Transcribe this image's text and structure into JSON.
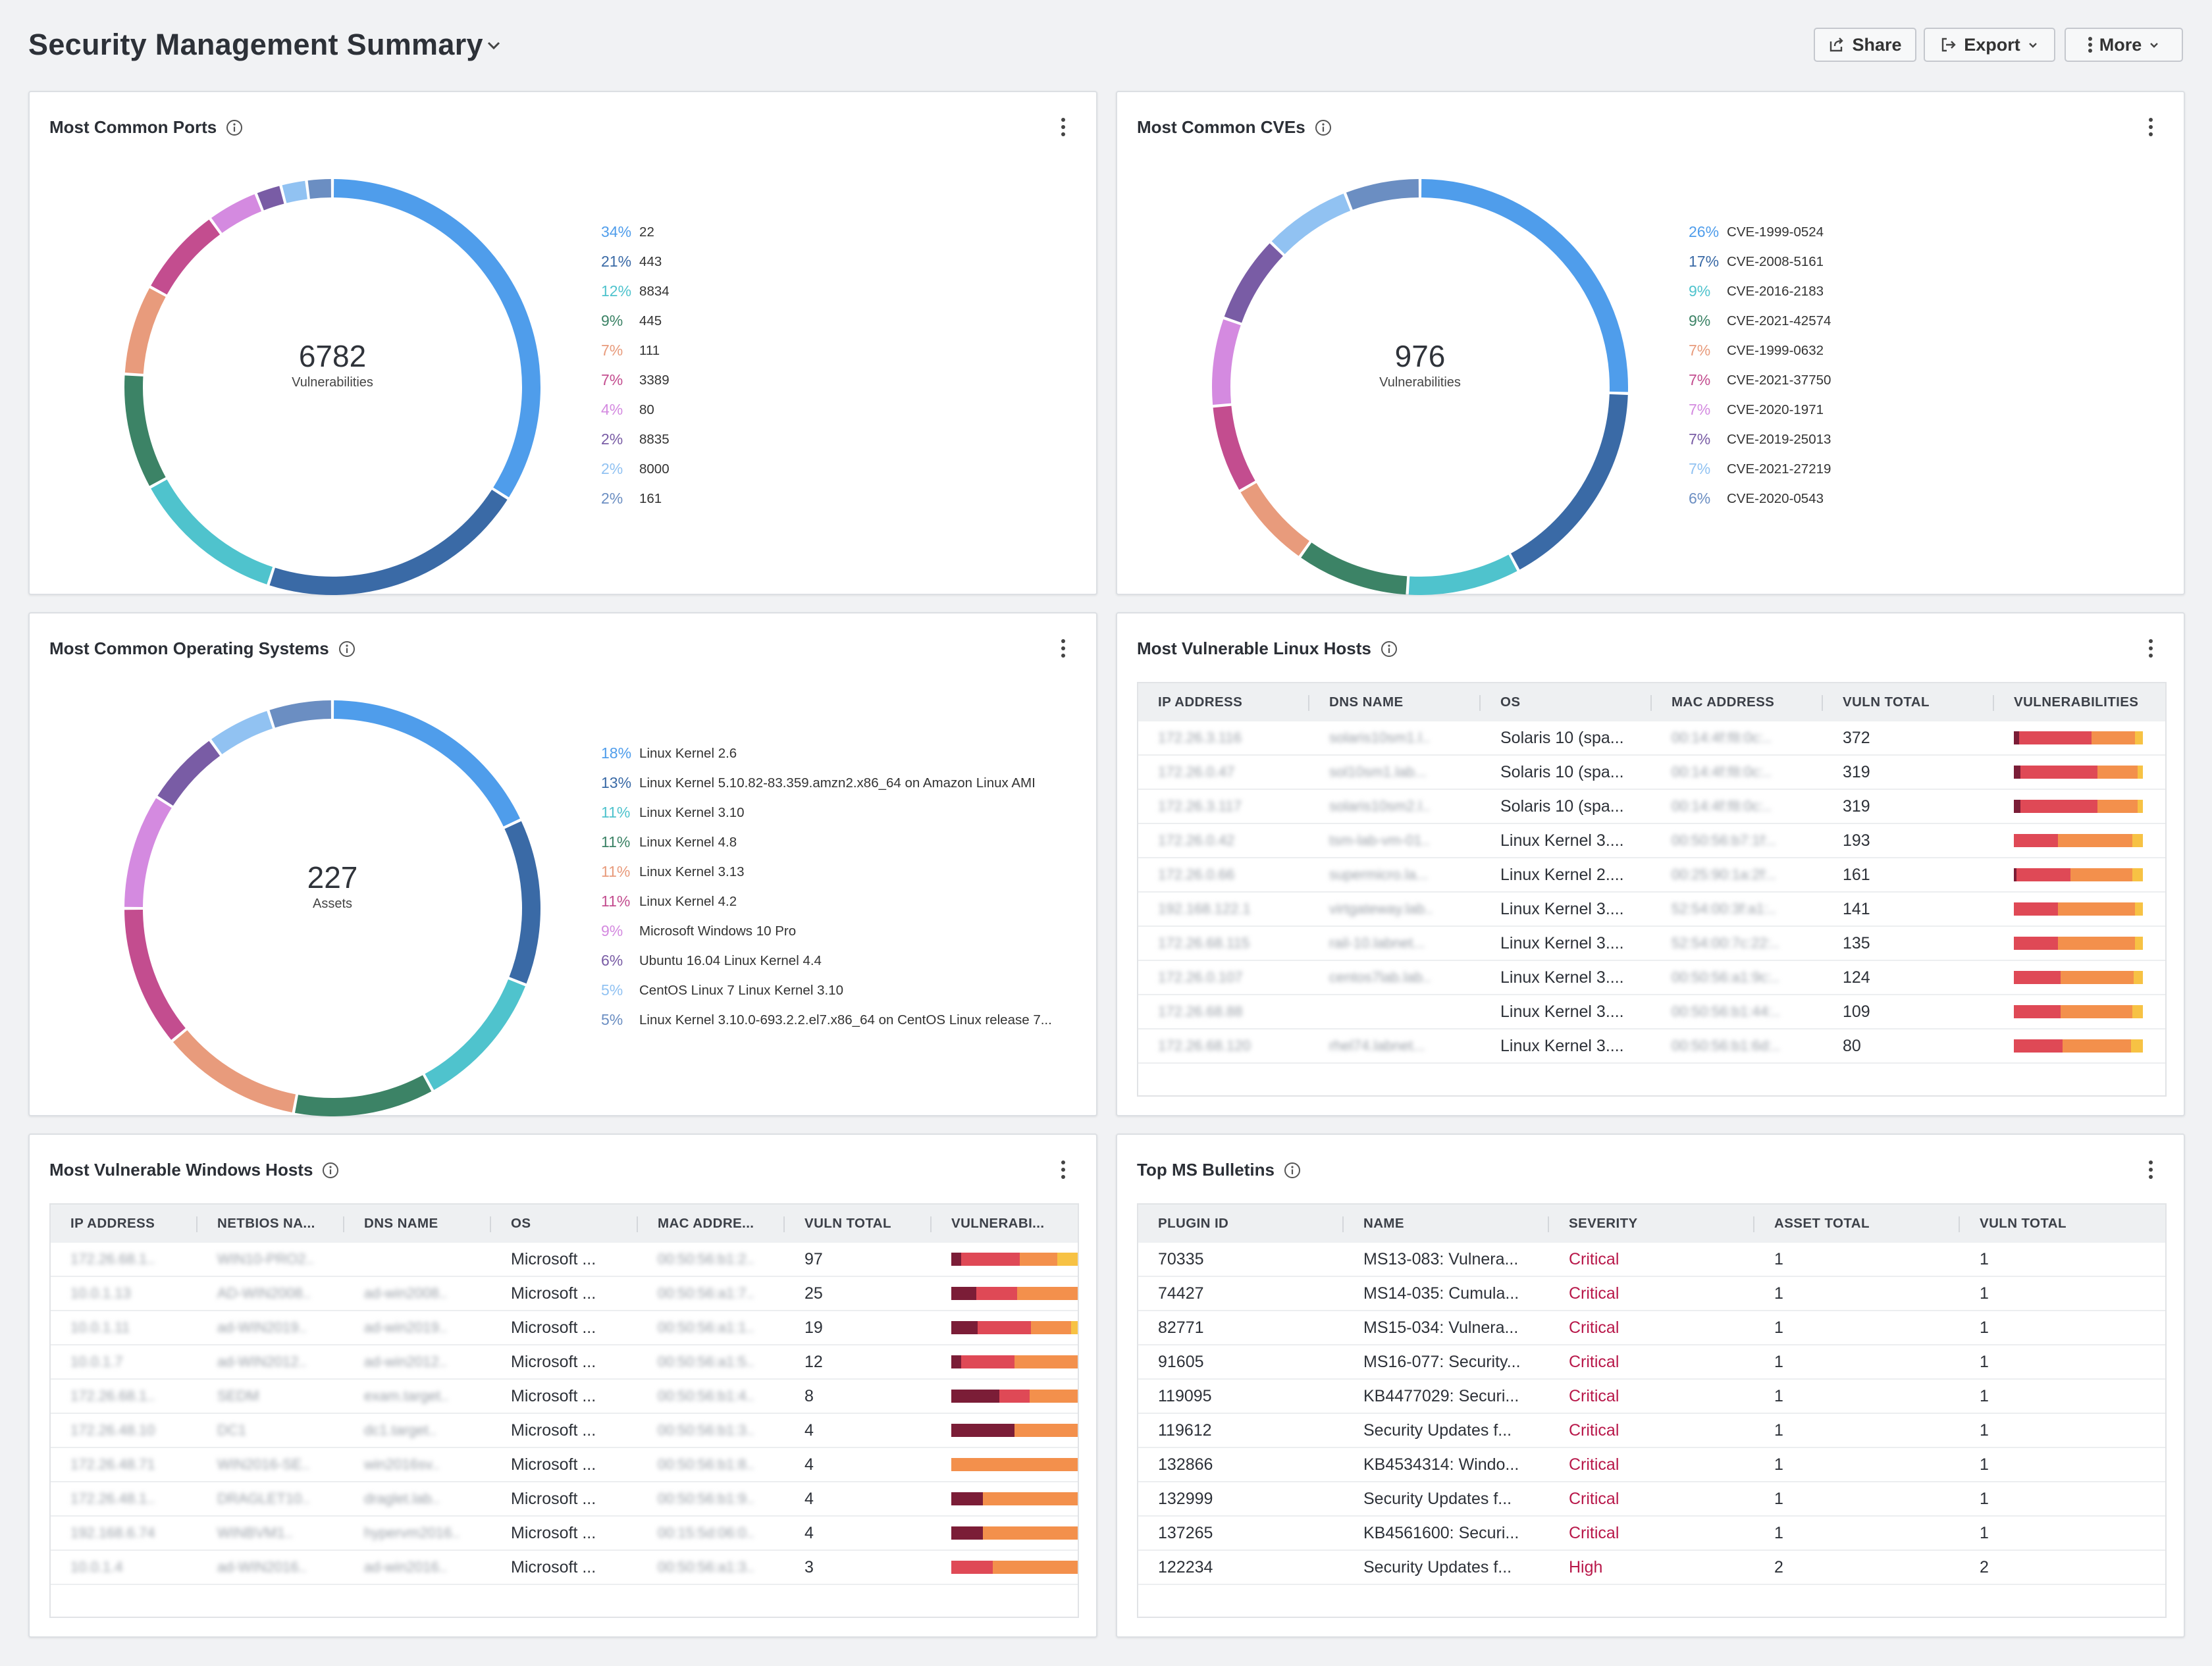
{
  "header": {
    "title": "Security Management Summary",
    "share_label": "Share",
    "export_label": "Export",
    "more_label": "More"
  },
  "colors": {
    "sev_critical": "#7b1d37",
    "sev_high": "#df4956",
    "sev_medium": "#f3904c",
    "sev_low": "#f7c244"
  },
  "panels": {
    "ports": {
      "title": "Most Common Ports",
      "center_value": "6782",
      "center_label": "Vulnerabilities",
      "chart_data": {
        "type": "pie",
        "title": "Most Common Ports",
        "categories": [
          "22",
          "443",
          "8834",
          "445",
          "111",
          "3389",
          "80",
          "8835",
          "8000",
          "161"
        ],
        "values": [
          34,
          21,
          12,
          9,
          7,
          7,
          4,
          2,
          2,
          2
        ],
        "labels": [
          "34%",
          "21%",
          "12%",
          "9%",
          "7%",
          "7%",
          "4%",
          "2%",
          "2%",
          "2%"
        ],
        "colors": [
          "#4f9deb",
          "#3a6aa6",
          "#4fc3cd",
          "#3c8366",
          "#e89b7c",
          "#c34d8f",
          "#d48ae0",
          "#795ca5",
          "#91c2f2",
          "#6b8ec2"
        ]
      }
    },
    "cves": {
      "title": "Most Common CVEs",
      "center_value": "976",
      "center_label": "Vulnerabilities",
      "chart_data": {
        "type": "pie",
        "title": "Most Common CVEs",
        "categories": [
          "CVE-1999-0524",
          "CVE-2008-5161",
          "CVE-2016-2183",
          "CVE-2021-42574",
          "CVE-1999-0632",
          "CVE-2021-37750",
          "CVE-2020-1971",
          "CVE-2019-25013",
          "CVE-2021-27219",
          "CVE-2020-0543"
        ],
        "values": [
          26,
          17,
          9,
          9,
          7,
          7,
          7,
          7,
          7,
          6
        ],
        "labels": [
          "26%",
          "17%",
          "9%",
          "9%",
          "7%",
          "7%",
          "7%",
          "7%",
          "7%",
          "6%"
        ],
        "colors": [
          "#4f9deb",
          "#3a6aa6",
          "#4fc3cd",
          "#3c8366",
          "#e89b7c",
          "#c34d8f",
          "#d48ae0",
          "#795ca5",
          "#91c2f2",
          "#6b8ec2"
        ]
      }
    },
    "os": {
      "title": "Most Common Operating Systems",
      "center_value": "227",
      "center_label": "Assets",
      "chart_data": {
        "type": "pie",
        "title": "Most Common Operating Systems",
        "categories": [
          "Linux Kernel 2.6",
          "Linux Kernel 5.10.82-83.359.amzn2.x86_64 on Amazon Linux AMI",
          "Linux Kernel 3.10",
          "Linux Kernel 4.8",
          "Linux Kernel 3.13",
          "Linux Kernel 4.2",
          "Microsoft Windows 10 Pro",
          "Ubuntu 16.04 Linux Kernel 4.4",
          "CentOS Linux 7 Linux Kernel 3.10",
          "Linux Kernel 3.10.0-693.2.2.el7.x86_64 on CentOS Linux release 7..."
        ],
        "values": [
          18,
          13,
          11,
          11,
          11,
          11,
          9,
          6,
          5,
          5
        ],
        "labels": [
          "18%",
          "13%",
          "11%",
          "11%",
          "11%",
          "11%",
          "9%",
          "6%",
          "5%",
          "5%"
        ],
        "colors": [
          "#4f9deb",
          "#3a6aa6",
          "#4fc3cd",
          "#3c8366",
          "#e89b7c",
          "#c34d8f",
          "#d48ae0",
          "#795ca5",
          "#91c2f2",
          "#6b8ec2"
        ]
      }
    },
    "linux_hosts": {
      "title": "Most Vulnerable Linux Hosts",
      "columns": [
        "IP ADDRESS",
        "DNS NAME",
        "OS",
        "MAC ADDRESS",
        "VULN TOTAL",
        "VULNERABILITIES"
      ],
      "rows": [
        {
          "ip": "172.26.3.116",
          "dns": "solaris10sm1.l..",
          "os": "Solaris 10 (spa...",
          "mac": "00:14:4f:f8:0c:..",
          "total": "372",
          "bar": [
            4,
            56,
            34,
            6
          ]
        },
        {
          "ip": "172.26.0.47",
          "dns": "sol10sm1.lab...",
          "os": "Solaris 10 (spa...",
          "mac": "00:14:4f:f8:0c:..",
          "total": "319",
          "bar": [
            5,
            60,
            31,
            4
          ]
        },
        {
          "ip": "172.26.3.117",
          "dns": "solaris10sm2.l..",
          "os": "Solaris 10 (spa...",
          "mac": "00:14:4f:f8:0c:..",
          "total": "319",
          "bar": [
            5,
            60,
            31,
            4
          ]
        },
        {
          "ip": "172.26.0.42",
          "dns": "tsm-lab-vm-01..",
          "os": "Linux Kernel 3....",
          "mac": "00:50:56:b7:1f:..",
          "total": "193",
          "bar": [
            0,
            34,
            58,
            8
          ]
        },
        {
          "ip": "172.26.0.66",
          "dns": "supermicro.la...",
          "os": "Linux Kernel 2....",
          "mac": "00:25:90:1a:2f:..",
          "total": "161",
          "bar": [
            2,
            42,
            48,
            8
          ]
        },
        {
          "ip": "192.168.122.1",
          "dns": "virtgateway.lab..",
          "os": "Linux Kernel 3....",
          "mac": "52:54:00:3f:a1:..",
          "total": "141",
          "bar": [
            0,
            34,
            60,
            6
          ]
        },
        {
          "ip": "172.26.68.115",
          "dns": "rail-10.labnet...",
          "os": "Linux Kernel 3....",
          "mac": "52:54:00:7c:22:..",
          "total": "135",
          "bar": [
            0,
            34,
            60,
            6
          ]
        },
        {
          "ip": "172.26.0.107",
          "dns": "centos7lab.lab..",
          "os": "Linux Kernel 3....",
          "mac": "00:50:56:a1:9c:..",
          "total": "124",
          "bar": [
            0,
            36,
            57,
            7
          ]
        },
        {
          "ip": "172.26.68.88",
          "dns": "",
          "os": "Linux Kernel 3....",
          "mac": "00:50:56:b1:44:..",
          "total": "109",
          "bar": [
            0,
            36,
            56,
            8
          ]
        },
        {
          "ip": "172.26.68.120",
          "dns": "rhel74.labnet...",
          "os": "Linux Kernel 3....",
          "mac": "00:50:56:b1:6d:..",
          "total": "80",
          "bar": [
            0,
            38,
            53,
            9
          ]
        }
      ]
    },
    "windows_hosts": {
      "title": "Most Vulnerable Windows Hosts",
      "columns": [
        "IP ADDRESS",
        "NETBIOS NA...",
        "DNS NAME",
        "OS",
        "MAC ADDRE...",
        "VULN TOTAL",
        "VULNERABI..."
      ],
      "rows": [
        {
          "ip": "172.26.68.1..",
          "netbios": "WIN10-PRO2..",
          "dns": "",
          "os": "Microsoft ...",
          "mac": "00:50:56:b1:2..",
          "total": "97",
          "bar": [
            8,
            46,
            30,
            16
          ]
        },
        {
          "ip": "10.0.1.13",
          "netbios": "AD-WIN2008..",
          "dns": "ad-win2008..",
          "os": "Microsoft ...",
          "mac": "00:50:56:a1:7..",
          "total": "25",
          "bar": [
            20,
            32,
            48,
            0
          ]
        },
        {
          "ip": "10.0.1.11",
          "netbios": "ad-WIN2019..",
          "dns": "ad-win2019..",
          "os": "Microsoft ...",
          "mac": "00:50:56:a1:1..",
          "total": "19",
          "bar": [
            21,
            42,
            32,
            5
          ]
        },
        {
          "ip": "10.0.1.7",
          "netbios": "ad-WIN2012..",
          "dns": "ad-win2012..",
          "os": "Microsoft ...",
          "mac": "00:50:56:a1:5..",
          "total": "12",
          "bar": [
            8,
            42,
            50,
            0
          ]
        },
        {
          "ip": "172.26.68.1..",
          "netbios": "SEDM",
          "dns": "exam.target..",
          "os": "Microsoft ...",
          "mac": "00:50:56:b1:4..",
          "total": "8",
          "bar": [
            38,
            24,
            38,
            0
          ]
        },
        {
          "ip": "172.26.48.10",
          "netbios": "DC1",
          "dns": "dc1.target..",
          "os": "Microsoft ...",
          "mac": "00:50:56:b1:3..",
          "total": "4",
          "bar": [
            50,
            0,
            50,
            0
          ]
        },
        {
          "ip": "172.26.48.71",
          "netbios": "WIN2016-SE..",
          "dns": "win2016sv..",
          "os": "Microsoft ...",
          "mac": "00:50:56:b1:8..",
          "total": "4",
          "bar": [
            0,
            0,
            100,
            0
          ]
        },
        {
          "ip": "172.26.48.1..",
          "netbios": "DRAGLET10..",
          "dns": "draglet.lab..",
          "os": "Microsoft ...",
          "mac": "00:50:56:b1:9..",
          "total": "4",
          "bar": [
            25,
            0,
            75,
            0
          ]
        },
        {
          "ip": "192.168.6.74",
          "netbios": "WINBVM1..",
          "dns": "hypervm2016..",
          "os": "Microsoft ...",
          "mac": "00:15:5d:06:0..",
          "total": "4",
          "bar": [
            25,
            0,
            75,
            0
          ]
        },
        {
          "ip": "10.0.1.4",
          "netbios": "ad-WIN2016..",
          "dns": "ad-win2016..",
          "os": "Microsoft ...",
          "mac": "00:50:56:a1:3..",
          "total": "3",
          "bar": [
            0,
            33,
            67,
            0
          ]
        }
      ]
    },
    "ms_bulletins": {
      "title": "Top MS Bulletins",
      "columns": [
        "PLUGIN ID",
        "NAME",
        "SEVERITY",
        "ASSET TOTAL",
        "VULN TOTAL"
      ],
      "rows": [
        {
          "plugin": "70335",
          "name": "MS13-083: Vulnera...",
          "severity": "Critical",
          "assets": "1",
          "vulns": "1"
        },
        {
          "plugin": "74427",
          "name": "MS14-035: Cumula...",
          "severity": "Critical",
          "assets": "1",
          "vulns": "1"
        },
        {
          "plugin": "82771",
          "name": "MS15-034: Vulnera...",
          "severity": "Critical",
          "assets": "1",
          "vulns": "1"
        },
        {
          "plugin": "91605",
          "name": "MS16-077: Security...",
          "severity": "Critical",
          "assets": "1",
          "vulns": "1"
        },
        {
          "plugin": "119095",
          "name": "KB4477029: Securi...",
          "severity": "Critical",
          "assets": "1",
          "vulns": "1"
        },
        {
          "plugin": "119612",
          "name": "Security Updates f...",
          "severity": "Critical",
          "assets": "1",
          "vulns": "1"
        },
        {
          "plugin": "132866",
          "name": "KB4534314: Windo...",
          "severity": "Critical",
          "assets": "1",
          "vulns": "1"
        },
        {
          "plugin": "132999",
          "name": "Security Updates f...",
          "severity": "Critical",
          "assets": "1",
          "vulns": "1"
        },
        {
          "plugin": "137265",
          "name": "KB4561600: Securi...",
          "severity": "Critical",
          "assets": "1",
          "vulns": "1"
        },
        {
          "plugin": "122234",
          "name": "Security Updates f...",
          "severity": "High",
          "assets": "2",
          "vulns": "2"
        }
      ]
    }
  }
}
